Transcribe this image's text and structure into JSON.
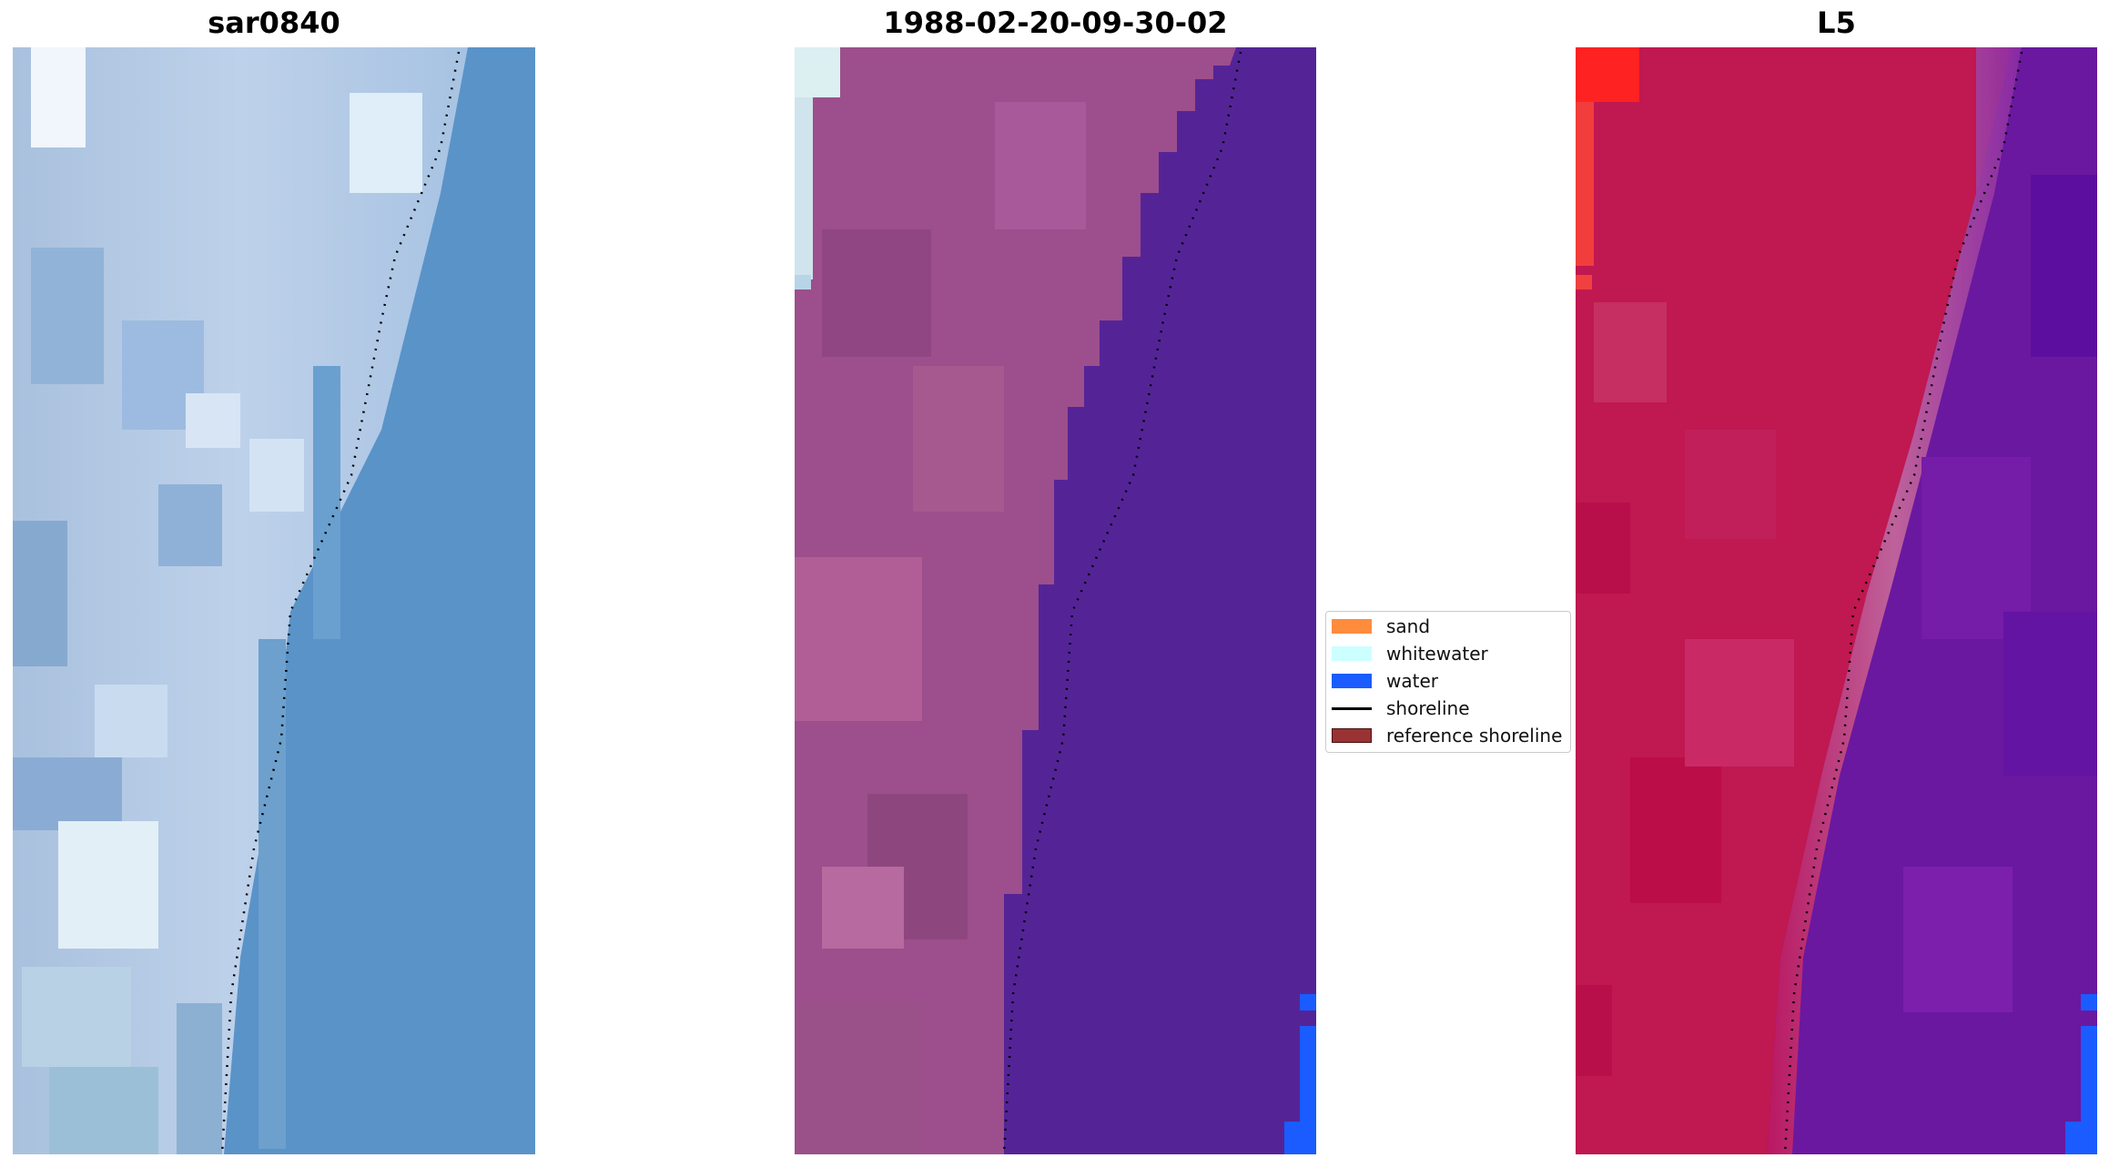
{
  "panels": [
    {
      "title": "sar0840"
    },
    {
      "title": "1988-02-20-09-30-02"
    },
    {
      "title": "L5"
    }
  ],
  "legend": {
    "items": [
      {
        "label": "sand",
        "color": "#ff8c3d"
      },
      {
        "label": "whitewater",
        "color": "#ccffff"
      },
      {
        "label": "water",
        "color": "#1a5cff"
      },
      {
        "label": "shoreline",
        "color": "#000000"
      },
      {
        "label": "reference shoreline",
        "color": "#993333"
      }
    ]
  },
  "colors": {
    "sea_rgb": "#5a93c8",
    "land_rgb": "#b7c9e2",
    "land_classified": "#9c4f8c",
    "water_classified": "#542497",
    "water_class_blue": "#1a5cff",
    "land_index": "#c01850",
    "water_index": "#6a18a0"
  }
}
